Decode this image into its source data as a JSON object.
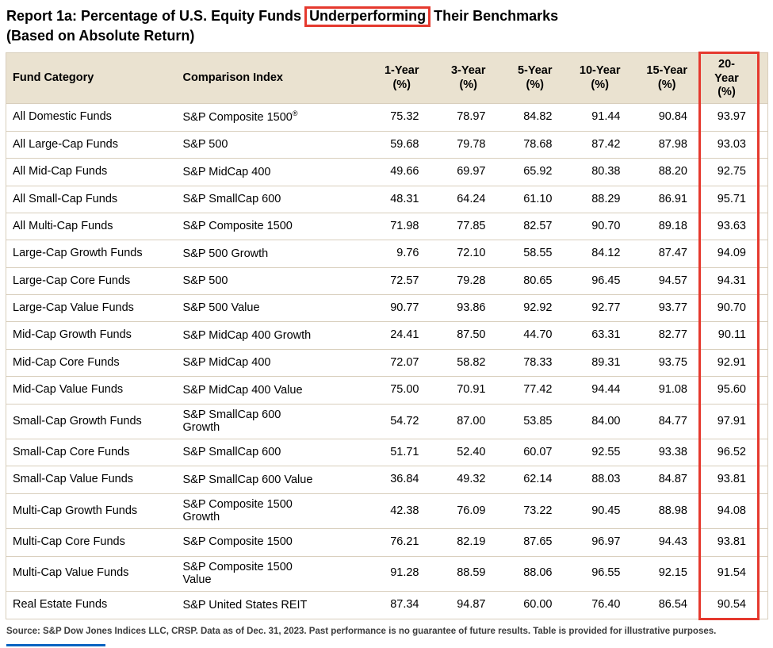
{
  "title": {
    "prefix": "Report 1a: Percentage of U.S. Equity Funds",
    "highlight": "Underperforming",
    "suffix": "Their Benchmarks",
    "line2": "(Based on Absolute Return)"
  },
  "table": {
    "header_fund_category": "Fund Category",
    "header_comparison_index": "Comparison Index",
    "periods": [
      {
        "line1": "1-Year",
        "line2": "(%)"
      },
      {
        "line1": "3-Year",
        "line2": "(%)"
      },
      {
        "line1": "5-Year",
        "line2": "(%)"
      },
      {
        "line1": "10-Year",
        "line2": "(%)"
      },
      {
        "line1": "15-Year",
        "line2": "(%)"
      },
      {
        "line1": "20-Year",
        "line2": "(%)"
      }
    ]
  },
  "chart_data": {
    "type": "table",
    "title": "Report 1a: Percentage of U.S. Equity Funds Underperforming Their Benchmarks (Based on Absolute Return)",
    "columns": [
      "Fund Category",
      "Comparison Index",
      "1-Year (%)",
      "3-Year (%)",
      "5-Year (%)",
      "10-Year (%)",
      "15-Year (%)",
      "20-Year (%)"
    ],
    "highlighted_title_word": "Underperforming",
    "highlighted_column": "20-Year (%)",
    "rows": [
      [
        "All Domestic Funds",
        "S&P Composite 1500®",
        "75.32",
        "78.97",
        "84.82",
        "91.44",
        "90.84",
        "93.97"
      ],
      [
        "All Large-Cap Funds",
        "S&P 500",
        "59.68",
        "79.78",
        "78.68",
        "87.42",
        "87.98",
        "93.03"
      ],
      [
        "All Mid-Cap Funds",
        "S&P MidCap 400",
        "49.66",
        "69.97",
        "65.92",
        "80.38",
        "88.20",
        "92.75"
      ],
      [
        "All Small-Cap Funds",
        "S&P SmallCap 600",
        "48.31",
        "64.24",
        "61.10",
        "88.29",
        "86.91",
        "95.71"
      ],
      [
        "All Multi-Cap Funds",
        "S&P Composite 1500",
        "71.98",
        "77.85",
        "82.57",
        "90.70",
        "89.18",
        "93.63"
      ],
      [
        "Large-Cap Growth Funds",
        "S&P 500 Growth",
        "9.76",
        "72.10",
        "58.55",
        "84.12",
        "87.47",
        "94.09"
      ],
      [
        "Large-Cap Core Funds",
        "S&P 500",
        "72.57",
        "79.28",
        "80.65",
        "96.45",
        "94.57",
        "94.31"
      ],
      [
        "Large-Cap Value Funds",
        "S&P 500 Value",
        "90.77",
        "93.86",
        "92.92",
        "92.77",
        "93.77",
        "90.70"
      ],
      [
        "Mid-Cap Growth Funds",
        "S&P MidCap 400 Growth",
        "24.41",
        "87.50",
        "44.70",
        "63.31",
        "82.77",
        "90.11"
      ],
      [
        "Mid-Cap Core Funds",
        "S&P MidCap 400",
        "72.07",
        "58.82",
        "78.33",
        "89.31",
        "93.75",
        "92.91"
      ],
      [
        "Mid-Cap Value Funds",
        "S&P MidCap 400 Value",
        "75.00",
        "70.91",
        "77.42",
        "94.44",
        "91.08",
        "95.60"
      ],
      [
        "Small-Cap Growth Funds",
        "S&P SmallCap 600 Growth",
        "54.72",
        "87.00",
        "53.85",
        "84.00",
        "84.77",
        "97.91"
      ],
      [
        "Small-Cap Core Funds",
        "S&P SmallCap 600",
        "51.71",
        "52.40",
        "60.07",
        "92.55",
        "93.38",
        "96.52"
      ],
      [
        "Small-Cap Value Funds",
        "S&P SmallCap 600 Value",
        "36.84",
        "49.32",
        "62.14",
        "88.03",
        "84.87",
        "93.81"
      ],
      [
        "Multi-Cap Growth Funds",
        "S&P Composite 1500 Growth",
        "42.38",
        "76.09",
        "73.22",
        "90.45",
        "88.98",
        "94.08"
      ],
      [
        "Multi-Cap Core Funds",
        "S&P Composite 1500",
        "76.21",
        "82.19",
        "87.65",
        "96.97",
        "94.43",
        "93.81"
      ],
      [
        "Multi-Cap Value Funds",
        "S&P Composite 1500 Value",
        "91.28",
        "88.59",
        "88.06",
        "96.55",
        "92.15",
        "91.54"
      ],
      [
        "Real Estate Funds",
        "S&P United States REIT",
        "87.34",
        "94.87",
        "60.00",
        "76.40",
        "86.54",
        "90.54"
      ]
    ]
  },
  "footnote": "Source: S&P Dow Jones Indices LLC, CRSP.  Data as of Dec. 31, 2023.  Past performance is no guarantee of future results.  Table is provided for illustrative purposes.",
  "colors": {
    "accent_red": "#e5392e",
    "header_bg": "#eae2d0",
    "row_line": "#d8cebc",
    "footnote_text": "#3c3c3c"
  }
}
